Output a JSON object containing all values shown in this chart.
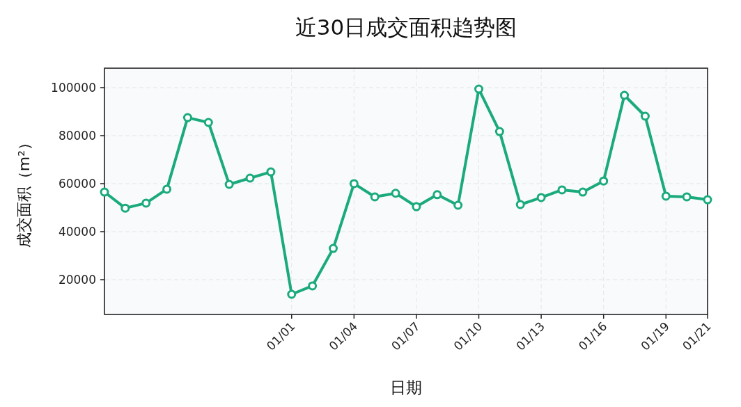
{
  "chart_data": {
    "type": "line",
    "title": "近30日成交面积趋势图",
    "xlabel": "日期",
    "ylabel": "成交面积（m²）",
    "categories": [
      null,
      null,
      null,
      null,
      null,
      null,
      null,
      null,
      null,
      "01/01",
      null,
      null,
      "01/04",
      null,
      null,
      "01/07",
      null,
      null,
      "01/10",
      null,
      null,
      "01/13",
      null,
      null,
      "01/16",
      null,
      null,
      "01/19",
      null,
      "01/21"
    ],
    "series": [
      {
        "color": "#1aaa7b",
        "values": [
          56500,
          49800,
          51900,
          57700,
          87500,
          85500,
          59700,
          62300,
          64900,
          13900,
          17400,
          33000,
          60000,
          54500,
          56000,
          50400,
          55400,
          51000,
          99400,
          81700,
          51300,
          54200,
          57400,
          56500,
          61100,
          96800,
          88100,
          54800,
          54500,
          53300
        ]
      }
    ],
    "ylim": [
      5500,
      108100
    ],
    "yticks": [
      20000,
      40000,
      60000,
      80000,
      100000
    ],
    "grid": true,
    "marker": "circle",
    "line_style": "solid"
  }
}
